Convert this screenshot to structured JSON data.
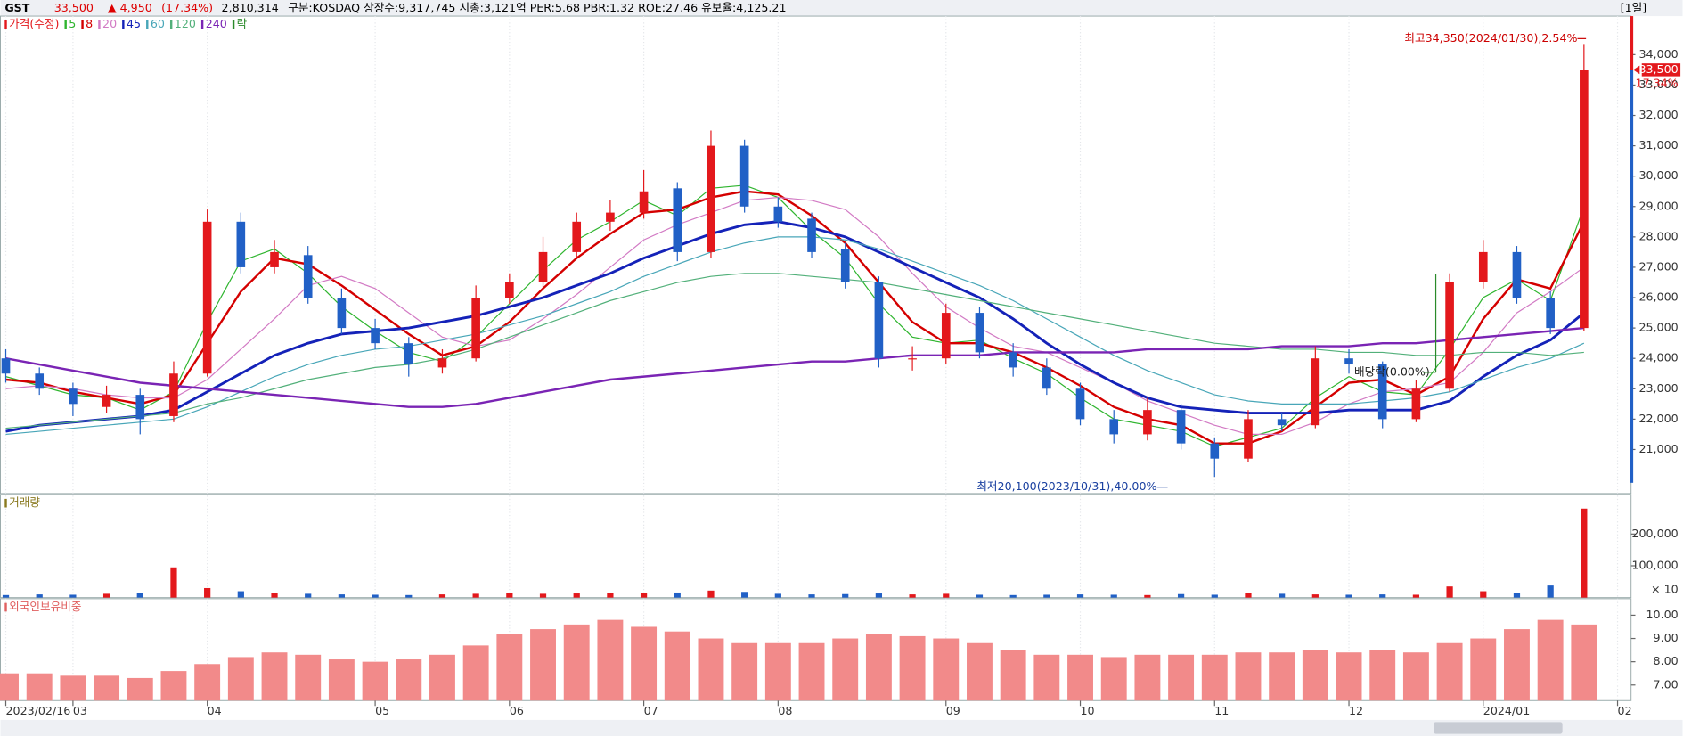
{
  "header": {
    "name": "GST",
    "price": "33,500",
    "change": "▲ 4,950",
    "change_pct": "(17.34%)",
    "volume": "2,810,314",
    "info": "구분:KOSDAQ 상장수:9,317,745 시총:3,121억 PER:5.68 PBR:1.32 ROE:27.46 유보율:4,125.21",
    "period": "[1일]"
  },
  "chart_data": [
    {
      "type": "candlestick",
      "title": "가격(수정)",
      "legend_extra": "락",
      "up_color": "#e3181c",
      "down_color": "#2160c6",
      "categories": [
        "2023/02/16",
        null,
        "03",
        null,
        null,
        null,
        "04",
        null,
        null,
        null,
        null,
        "05",
        null,
        null,
        null,
        "06",
        null,
        null,
        null,
        "07",
        null,
        null,
        null,
        "08",
        null,
        null,
        null,
        null,
        "09",
        null,
        null,
        null,
        "10",
        null,
        null,
        null,
        "11",
        null,
        null,
        null,
        "12",
        null,
        null,
        null,
        "2024/01",
        null,
        null,
        null,
        "02"
      ],
      "open": [
        24000,
        23500,
        23000,
        22400,
        22800,
        22100,
        23500,
        28500,
        27000,
        27400,
        26000,
        25000,
        24500,
        23700,
        24000,
        26000,
        26500,
        27500,
        28500,
        28800,
        29600,
        27500,
        31000,
        29000,
        28600,
        27600,
        26500,
        24000,
        24000,
        25500,
        24200,
        23700,
        23000,
        22000,
        21500,
        22300,
        21200,
        20700,
        22000,
        21800,
        24000,
        23800,
        22000,
        23000,
        26500,
        27500,
        26000,
        25000,
        null
      ],
      "high": [
        24300,
        23700,
        23200,
        23100,
        23000,
        23900,
        28900,
        28800,
        27900,
        27700,
        26300,
        25300,
        24700,
        24300,
        26400,
        26800,
        28000,
        28800,
        29200,
        30200,
        29800,
        31500,
        31200,
        29300,
        28800,
        27800,
        26700,
        24400,
        25800,
        25700,
        24500,
        24000,
        23200,
        22300,
        22700,
        22500,
        21400,
        22300,
        22200,
        24400,
        24300,
        23900,
        23300,
        26800,
        27900,
        27700,
        26200,
        34350,
        null
      ],
      "low": [
        23200,
        22800,
        22100,
        22200,
        21500,
        21900,
        23400,
        26800,
        26800,
        25800,
        24800,
        24300,
        23400,
        23500,
        23900,
        25800,
        26300,
        27300,
        28200,
        28600,
        27200,
        27300,
        28800,
        28300,
        27300,
        26300,
        23700,
        23600,
        23800,
        24000,
        23400,
        22800,
        21800,
        21200,
        21300,
        21000,
        20100,
        20600,
        21600,
        21700,
        23500,
        21700,
        21900,
        22900,
        26300,
        25800,
        24800,
        24900,
        null
      ],
      "close": [
        23500,
        23000,
        22500,
        22800,
        22000,
        23500,
        28500,
        27000,
        27500,
        26000,
        25000,
        24500,
        23800,
        24000,
        26000,
        26500,
        27500,
        28500,
        28800,
        29500,
        27500,
        31000,
        29000,
        28500,
        27500,
        26500,
        24000,
        24000,
        25500,
        24200,
        23700,
        23000,
        22000,
        21500,
        22300,
        21200,
        20700,
        22000,
        21800,
        24000,
        23800,
        22000,
        23000,
        26500,
        27500,
        26000,
        25000,
        33500,
        null
      ],
      "series": [
        {
          "name": "5",
          "color": "#2fb52f",
          "values": [
            23400,
            23100,
            22800,
            22700,
            22300,
            22900,
            25200,
            27200,
            27600,
            26800,
            25700,
            24900,
            24200,
            23900,
            24700,
            25800,
            26900,
            27900,
            28500,
            29200,
            28700,
            29600,
            29700,
            29300,
            28200,
            27300,
            25800,
            24700,
            24500,
            24600,
            24000,
            23500,
            22700,
            22000,
            21800,
            21600,
            21100,
            21400,
            21700,
            22700,
            23400,
            22900,
            22800,
            24300,
            26000,
            26600,
            25900,
            29000,
            null
          ]
        },
        {
          "name": "8",
          "color": "#d40000",
          "values": [
            23300,
            23200,
            22900,
            22700,
            22500,
            22800,
            24500,
            26200,
            27300,
            27100,
            26400,
            25600,
            24800,
            24100,
            24400,
            25200,
            26300,
            27300,
            28100,
            28800,
            28900,
            29300,
            29500,
            29400,
            28700,
            27800,
            26500,
            25200,
            24500,
            24500,
            24200,
            23700,
            23100,
            22400,
            22000,
            21800,
            21200,
            21200,
            21600,
            22400,
            23200,
            23300,
            22800,
            23400,
            25300,
            26600,
            26300,
            28500,
            null
          ]
        },
        {
          "name": "20",
          "color": "#d27ac4",
          "values": [
            23000,
            23100,
            23000,
            22800,
            22700,
            22700,
            23300,
            24300,
            25300,
            26400,
            26700,
            26300,
            25500,
            24700,
            24400,
            24600,
            25300,
            26100,
            27000,
            27900,
            28400,
            28800,
            29200,
            29300,
            29200,
            28900,
            28000,
            26800,
            25700,
            25000,
            24400,
            24200,
            23700,
            23200,
            22600,
            22200,
            21800,
            21500,
            21500,
            21900,
            22500,
            22900,
            23000,
            23200,
            24200,
            25500,
            26200,
            27000,
            null
          ]
        },
        {
          "name": "45",
          "color": "#1422b8",
          "values": [
            21600,
            21800,
            21900,
            22000,
            22100,
            22300,
            22900,
            23500,
            24100,
            24500,
            24800,
            24900,
            25000,
            25200,
            25400,
            25700,
            26000,
            26400,
            26800,
            27300,
            27700,
            28100,
            28400,
            28500,
            28300,
            28000,
            27500,
            27000,
            26500,
            26000,
            25300,
            24500,
            23800,
            23200,
            22700,
            22400,
            22300,
            22200,
            22200,
            22200,
            22300,
            22300,
            22300,
            22600,
            23400,
            24100,
            24600,
            25500,
            null
          ]
        },
        {
          "name": "60",
          "color": "#48a6b8",
          "values": [
            21500,
            21600,
            21700,
            21800,
            21900,
            22000,
            22400,
            22900,
            23400,
            23800,
            24100,
            24300,
            24400,
            24600,
            24800,
            25100,
            25400,
            25800,
            26200,
            26700,
            27100,
            27500,
            27800,
            28000,
            28000,
            27900,
            27600,
            27200,
            26800,
            26400,
            25900,
            25300,
            24700,
            24100,
            23600,
            23200,
            22800,
            22600,
            22500,
            22500,
            22500,
            22600,
            22700,
            22900,
            23300,
            23700,
            24000,
            24500,
            null
          ]
        },
        {
          "name": "120",
          "color": "#52b07a",
          "values": [
            21700,
            21800,
            21900,
            22000,
            22100,
            22200,
            22500,
            22700,
            23000,
            23300,
            23500,
            23700,
            23800,
            24000,
            24300,
            24700,
            25100,
            25500,
            25900,
            26200,
            26500,
            26700,
            26800,
            26800,
            26700,
            26600,
            26500,
            26300,
            26100,
            25900,
            25700,
            25500,
            25300,
            25100,
            24900,
            24700,
            24500,
            24400,
            24300,
            24300,
            24200,
            24200,
            24100,
            24100,
            24200,
            24200,
            24100,
            24200,
            null
          ]
        },
        {
          "name": "240",
          "color": "#7a24b4",
          "values": [
            24000,
            23800,
            23600,
            23400,
            23200,
            23100,
            23000,
            22900,
            22800,
            22700,
            22600,
            22500,
            22400,
            22400,
            22500,
            22700,
            22900,
            23100,
            23300,
            23400,
            23500,
            23600,
            23700,
            23800,
            23900,
            23900,
            24000,
            24100,
            24100,
            24100,
            24200,
            24200,
            24200,
            24200,
            24300,
            24300,
            24300,
            24300,
            24400,
            24400,
            24400,
            24500,
            24500,
            24600,
            24700,
            24800,
            24900,
            25000,
            null
          ]
        }
      ],
      "ylim": [
        19550,
        35270
      ],
      "yticks": [
        {
          "value": 21000,
          "label": "21,000"
        },
        {
          "value": 22000,
          "label": "22,000"
        },
        {
          "value": 23000,
          "label": "23,000"
        },
        {
          "value": 24000,
          "label": "24,000"
        },
        {
          "value": 25000,
          "label": "25,000"
        },
        {
          "value": 26000,
          "label": "26,000"
        },
        {
          "value": 27000,
          "label": "27,000"
        },
        {
          "value": 28000,
          "label": "28,000"
        },
        {
          "value": 29000,
          "label": "29,000"
        },
        {
          "value": 30000,
          "label": "30,000"
        },
        {
          "value": 31000,
          "label": "31,000"
        },
        {
          "value": 32000,
          "label": "32,000"
        },
        {
          "value": 33000,
          "label": "33,000"
        },
        {
          "value": 34000,
          "label": "34,000"
        }
      ],
      "annotations": [
        "최고34,350(2024/01/30),2.54%",
        "최저20,100(2023/10/31),40.00%",
        "배당락(0.00%)"
      ],
      "price_tag": "33,500",
      "change_tag": "17.34%"
    },
    {
      "type": "bar",
      "title": "거래량",
      "unit_label": "× 10",
      "values": [
        8000,
        10000,
        9000,
        12000,
        15000,
        95000,
        30000,
        20000,
        15000,
        12000,
        10000,
        9000,
        8000,
        10000,
        12000,
        14000,
        12000,
        13000,
        15000,
        14000,
        16000,
        22000,
        18000,
        12000,
        10000,
        11000,
        13000,
        10000,
        12000,
        9000,
        8000,
        9000,
        10000,
        9000,
        8000,
        11000,
        9000,
        14000,
        12000,
        10000,
        9000,
        10000,
        9000,
        35000,
        20000,
        14000,
        38000,
        280000,
        null
      ],
      "ylim": [
        0,
        324000
      ],
      "yticks": [
        {
          "value": 100000,
          "label": "100,000"
        },
        {
          "value": 200000,
          "label": "200,000"
        }
      ]
    },
    {
      "type": "bar",
      "title": "외국인보유비중",
      "color": "#f28a8a",
      "values": [
        7.5,
        7.5,
        7.4,
        7.4,
        7.3,
        7.6,
        7.9,
        8.2,
        8.4,
        8.3,
        8.1,
        8.0,
        8.1,
        8.3,
        8.7,
        9.2,
        9.4,
        9.6,
        9.8,
        9.5,
        9.3,
        9.0,
        8.8,
        8.8,
        8.8,
        9.0,
        9.2,
        9.1,
        9.0,
        8.8,
        8.5,
        8.3,
        8.3,
        8.2,
        8.3,
        8.3,
        8.3,
        8.4,
        8.4,
        8.5,
        8.4,
        8.5,
        8.4,
        8.8,
        9.0,
        9.4,
        9.8,
        9.6,
        null
      ],
      "ylim": [
        6.33,
        10.71
      ],
      "yticks": [
        {
          "value": 7,
          "label": "7.00"
        },
        {
          "value": 8,
          "label": "8.00"
        },
        {
          "value": 9,
          "label": "9.00"
        },
        {
          "value": 10,
          "label": "10.00"
        }
      ]
    }
  ]
}
